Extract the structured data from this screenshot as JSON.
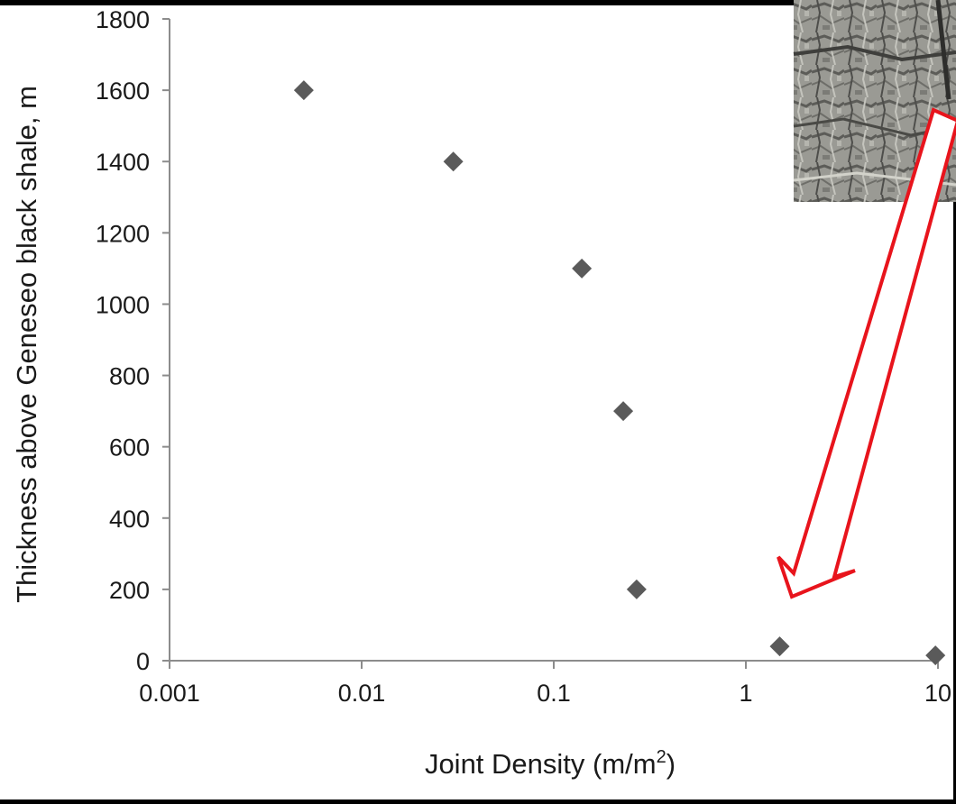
{
  "chart_data": {
    "type": "scatter",
    "xlabel": "Joint Density (m/m",
    "xlabel_sup": "2",
    "xlabel_close": ")",
    "ylabel": "Thickness above Geneseo black shale, m",
    "x_scale": "log",
    "xlim": [
      0.001,
      10
    ],
    "ylim": [
      0,
      1800
    ],
    "x_ticks": [
      {
        "value": 0.001,
        "label": "0.001"
      },
      {
        "value": 0.01,
        "label": "0.01"
      },
      {
        "value": 0.1,
        "label": "0.1"
      },
      {
        "value": 1,
        "label": "1"
      },
      {
        "value": 10,
        "label": "10"
      }
    ],
    "y_ticks": [
      {
        "value": 0,
        "label": "0"
      },
      {
        "value": 200,
        "label": "200"
      },
      {
        "value": 400,
        "label": "400"
      },
      {
        "value": 600,
        "label": "600"
      },
      {
        "value": 800,
        "label": "800"
      },
      {
        "value": 1000,
        "label": "1000"
      },
      {
        "value": 1200,
        "label": "1200"
      },
      {
        "value": 1400,
        "label": "1400"
      },
      {
        "value": 1600,
        "label": "1600"
      },
      {
        "value": 1800,
        "label": "1800"
      }
    ],
    "grid": false,
    "marker": "diamond",
    "points": [
      {
        "x": 0.005,
        "y": 1600
      },
      {
        "x": 0.03,
        "y": 1400
      },
      {
        "x": 0.14,
        "y": 1100
      },
      {
        "x": 0.23,
        "y": 700
      },
      {
        "x": 0.27,
        "y": 200
      },
      {
        "x": 1.5,
        "y": 40
      },
      {
        "x": 9.7,
        "y": 15
      }
    ],
    "annotations": [
      {
        "type": "arrow",
        "color": "#e8141c",
        "points_to": "point near x=1.5, y=40"
      },
      {
        "type": "photo-inset",
        "subject": "rock outcrop",
        "placement": "top-right"
      }
    ]
  },
  "colors": {
    "background": "#000000",
    "plot_area": "#ffffff",
    "axis": "#8c8c8c",
    "marker": "#5a5a5a",
    "text": "#1a1a1a",
    "arrow_outline": "#e8141c",
    "arrow_fill": "#ffffff"
  }
}
